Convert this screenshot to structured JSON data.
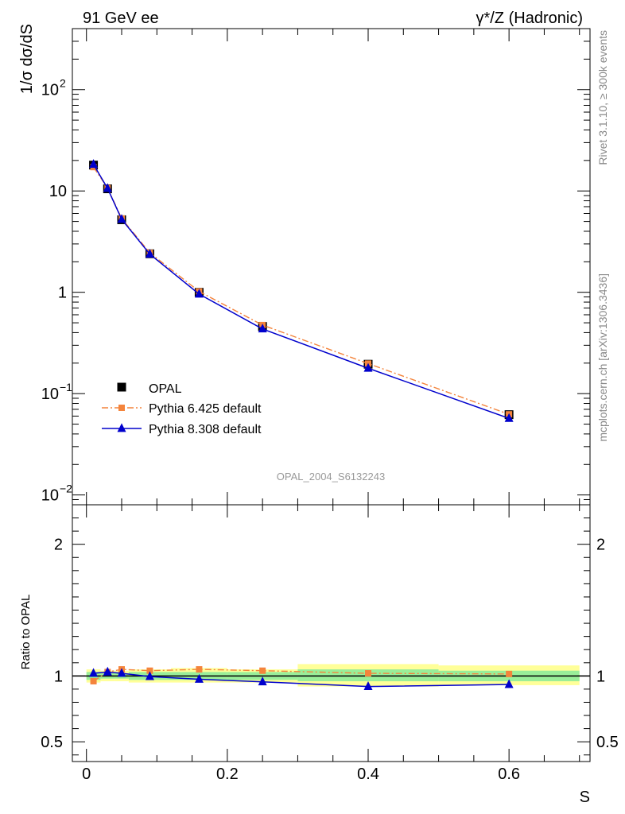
{
  "header": {
    "left_label": "91 GeV ee",
    "right_label": "γ*/Z (Hadronic)"
  },
  "side_text": {
    "rivet": "Rivet 3.1.10, ≥ 300k events",
    "source": "mcplots.cern.ch [arXiv:1306.3436]"
  },
  "watermark": "OPAL_2004_S6132243",
  "colors": {
    "data": "#000000",
    "pythia6": "#f4843c",
    "pythia8": "#0000cc",
    "band_inner": "#99ee99",
    "band_outer": "#ffff99"
  },
  "chart_data": [
    {
      "type": "line",
      "panel": "main",
      "ylabel": "1/σ dσ/dS",
      "yscale": "log",
      "ylim": [
        0.008,
        400
      ],
      "xlim": [
        -0.02,
        0.715
      ],
      "yticks": [
        {
          "value": 0.01,
          "base": "10",
          "exp": "−2"
        },
        {
          "value": 0.1,
          "base": "10",
          "exp": "−1"
        },
        {
          "value": 1,
          "base": "1",
          "exp": ""
        },
        {
          "value": 10,
          "base": "10",
          "exp": ""
        },
        {
          "value": 100,
          "base": "10",
          "exp": "2"
        }
      ],
      "legend_placement": "lower-left",
      "x": [
        0.01,
        0.03,
        0.05,
        0.09,
        0.16,
        0.25,
        0.4,
        0.6
      ],
      "series": [
        {
          "name": "OPAL",
          "marker": "square",
          "values": [
            18.0,
            10.5,
            5.2,
            2.4,
            1.0,
            0.46,
            0.195,
            0.062
          ]
        },
        {
          "name": "Pythia 6.425 default",
          "marker": "small-square",
          "line": "dash-dot",
          "values": [
            17.2,
            10.7,
            5.35,
            2.45,
            1.02,
            0.475,
            0.198,
            0.0625
          ]
        },
        {
          "name": "Pythia 8.308 default",
          "marker": "triangle",
          "line": "solid",
          "values": [
            18.3,
            10.6,
            5.25,
            2.38,
            0.96,
            0.435,
            0.178,
            0.057
          ]
        }
      ]
    },
    {
      "type": "line",
      "panel": "ratio",
      "ylabel": "Ratio to OPAL",
      "xlabel": "S",
      "ylim": [
        0.35,
        2.3
      ],
      "xlim": [
        -0.02,
        0.715
      ],
      "xticks": [
        0,
        0.2,
        0.4,
        0.6
      ],
      "yticks": [
        0.5,
        1,
        2
      ],
      "reference": 1,
      "x": [
        0.01,
        0.03,
        0.05,
        0.09,
        0.16,
        0.25,
        0.4,
        0.6
      ],
      "series": [
        {
          "name": "Pythia 6.425 default",
          "values": [
            0.96,
            1.03,
            1.05,
            1.04,
            1.05,
            1.04,
            1.02,
            1.015
          ]
        },
        {
          "name": "Pythia 8.308 default",
          "values": [
            1.02,
            1.03,
            1.02,
            0.995,
            0.975,
            0.955,
            0.92,
            0.935
          ]
        }
      ],
      "uncertainty_bins": [
        {
          "x0": 0.0,
          "x1": 0.02,
          "inner": [
            0.97,
            1.03
          ],
          "outer": [
            0.95,
            1.05
          ]
        },
        {
          "x0": 0.02,
          "x1": 0.04,
          "inner": [
            0.98,
            1.02
          ],
          "outer": [
            0.96,
            1.04
          ]
        },
        {
          "x0": 0.04,
          "x1": 0.06,
          "inner": [
            0.98,
            1.02
          ],
          "outer": [
            0.96,
            1.04
          ]
        },
        {
          "x0": 0.06,
          "x1": 0.12,
          "inner": [
            0.97,
            1.03
          ],
          "outer": [
            0.95,
            1.05
          ]
        },
        {
          "x0": 0.12,
          "x1": 0.2,
          "inner": [
            0.97,
            1.03
          ],
          "outer": [
            0.95,
            1.06
          ]
        },
        {
          "x0": 0.2,
          "x1": 0.3,
          "inner": [
            0.97,
            1.03
          ],
          "outer": [
            0.95,
            1.05
          ]
        },
        {
          "x0": 0.3,
          "x1": 0.5,
          "inner": [
            0.96,
            1.05
          ],
          "outer": [
            0.92,
            1.09
          ]
        },
        {
          "x0": 0.5,
          "x1": 0.7,
          "inner": [
            0.96,
            1.04
          ],
          "outer": [
            0.93,
            1.08
          ]
        }
      ]
    }
  ]
}
